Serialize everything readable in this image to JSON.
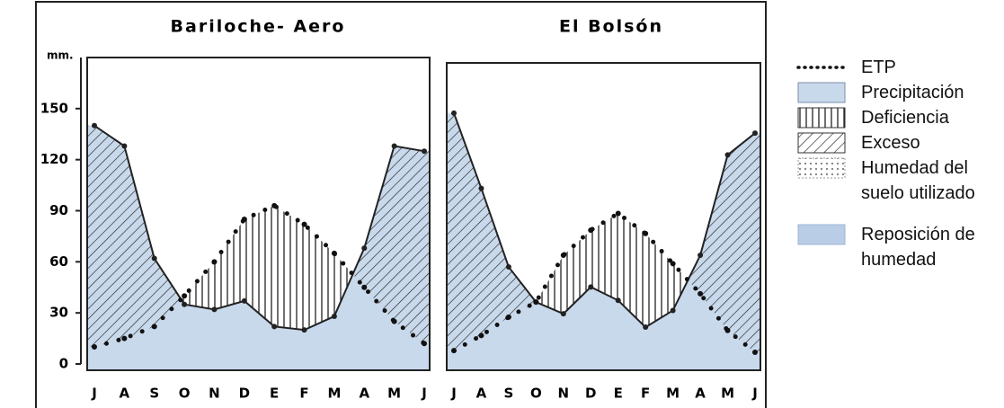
{
  "chart_data": [
    {
      "type": "line",
      "title": "Bariloche- Aero",
      "ylabel": "mm.",
      "categories": [
        "J",
        "A",
        "S",
        "O",
        "N",
        "D",
        "E",
        "F",
        "M",
        "A",
        "M",
        "J"
      ],
      "ylim": [
        0,
        180
      ],
      "yticks": [
        0,
        30,
        60,
        90,
        120,
        150
      ],
      "series": [
        {
          "color": "#111111",
          "values": [
            10,
            15,
            22,
            40,
            60,
            85,
            93,
            82,
            65,
            45,
            25,
            12
          ]
        },
        {
          "color": "#c9d9ec",
          "values": [
            140,
            128,
            62,
            35,
            32,
            37,
            22,
            20,
            28,
            68,
            128,
            125
          ]
        }
      ]
    },
    {
      "type": "line",
      "title": "El Bolsón",
      "categories": [
        "J",
        "A",
        "S",
        "O",
        "N",
        "D",
        "E",
        "F",
        "M",
        "A",
        "M",
        "J"
      ],
      "ylim": [
        0,
        180
      ],
      "series": [
        {
          "color": "#111111",
          "values": [
            8,
            17,
            28,
            37,
            65,
            80,
            90,
            78,
            60,
            42,
            20,
            7
          ]
        },
        {
          "color": "#c9d9ec",
          "values": [
            150,
            105,
            58,
            37,
            30,
            46,
            38,
            22,
            32,
            65,
            125,
            138
          ]
        }
      ]
    }
  ],
  "legend": [
    "ETP",
    "Precipitación",
    "Deficiencia",
    "Exceso",
    "Humedad del suelo utilizado",
    "Reposición de humedad"
  ]
}
